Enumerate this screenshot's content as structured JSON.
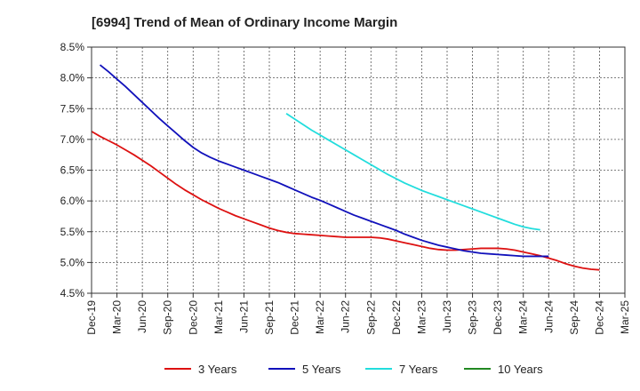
{
  "chart_data": {
    "type": "line",
    "title": "[6994]  Trend of Mean of Ordinary Income Margin",
    "xlabel": "",
    "ylabel": "",
    "ylim": [
      4.5,
      8.5
    ],
    "y_ticks": [
      "4.5%",
      "5.0%",
      "5.5%",
      "6.0%",
      "6.5%",
      "7.0%",
      "7.5%",
      "8.0%",
      "8.5%"
    ],
    "y_tick_values": [
      4.5,
      5.0,
      5.5,
      6.0,
      6.5,
      7.0,
      7.5,
      8.0,
      8.5
    ],
    "x_ticks": [
      "Dec-19",
      "Mar-20",
      "Jun-20",
      "Sep-20",
      "Dec-20",
      "Mar-21",
      "Jun-21",
      "Sep-21",
      "Dec-21",
      "Mar-22",
      "Jun-22",
      "Sep-22",
      "Dec-22",
      "Mar-23",
      "Jun-23",
      "Sep-23",
      "Dec-23",
      "Mar-24",
      "Jun-24",
      "Sep-24",
      "Dec-24",
      "Mar-25"
    ],
    "grid": true,
    "legend_position": "bottom",
    "series": [
      {
        "name": "3 Years",
        "color": "#dd1111",
        "start_index": 0,
        "values": [
          7.13,
          7.05,
          6.98,
          6.91,
          6.83,
          6.75,
          6.66,
          6.57,
          6.47,
          6.37,
          6.27,
          6.18,
          6.1,
          6.02,
          5.95,
          5.88,
          5.82,
          5.76,
          5.71,
          5.66,
          5.61,
          5.56,
          5.52,
          5.49,
          5.47,
          5.46,
          5.45,
          5.44,
          5.43,
          5.42,
          5.41,
          5.41,
          5.41,
          5.41,
          5.4,
          5.38,
          5.35,
          5.32,
          5.29,
          5.26,
          5.23,
          5.21,
          5.2,
          5.2,
          5.21,
          5.22,
          5.23,
          5.23,
          5.23,
          5.22,
          5.2,
          5.17,
          5.14,
          5.11,
          5.07,
          5.03,
          4.98,
          4.94,
          4.91,
          4.89,
          4.88
        ]
      },
      {
        "name": "5 Years",
        "color": "#1111bb",
        "start_index": 1,
        "values": [
          8.21,
          8.1,
          7.98,
          7.86,
          7.73,
          7.6,
          7.47,
          7.34,
          7.22,
          7.1,
          6.98,
          6.87,
          6.78,
          6.71,
          6.65,
          6.6,
          6.55,
          6.5,
          6.45,
          6.4,
          6.35,
          6.3,
          6.24,
          6.18,
          6.12,
          6.06,
          6.01,
          5.95,
          5.89,
          5.83,
          5.77,
          5.72,
          5.67,
          5.62,
          5.57,
          5.52,
          5.46,
          5.41,
          5.36,
          5.32,
          5.28,
          5.25,
          5.22,
          5.19,
          5.17,
          5.15,
          5.14,
          5.13,
          5.12,
          5.11,
          5.1,
          5.1,
          5.1,
          5.1
        ]
      },
      {
        "name": "7 Years",
        "color": "#22dddd",
        "start_index": 23,
        "values": [
          7.42,
          7.33,
          7.24,
          7.15,
          7.07,
          6.99,
          6.91,
          6.83,
          6.75,
          6.67,
          6.59,
          6.51,
          6.43,
          6.36,
          6.29,
          6.23,
          6.17,
          6.12,
          6.07,
          6.02,
          5.97,
          5.92,
          5.87,
          5.82,
          5.77,
          5.72,
          5.67,
          5.62,
          5.58,
          5.55,
          5.53
        ]
      },
      {
        "name": "10 Years",
        "color": "#228822",
        "start_index": 0,
        "values": []
      }
    ]
  }
}
